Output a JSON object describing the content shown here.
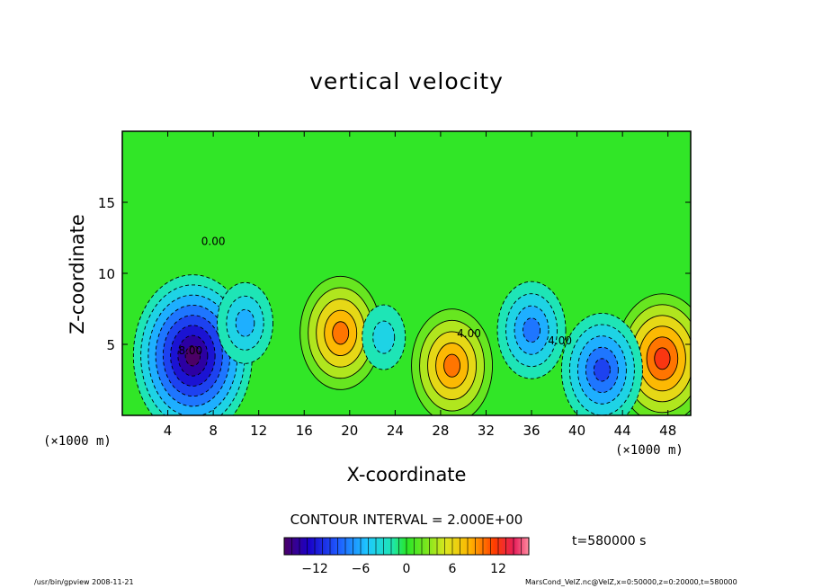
{
  "chart_data": {
    "type": "heatmap",
    "title": "vertical velocity",
    "xlabel": "X-coordinate",
    "ylabel": "Z-coordinate",
    "x_unit_label_left": "(×1000 m)",
    "x_unit_label_right": "(×1000 m)",
    "xlim": [
      0,
      50
    ],
    "ylim": [
      0,
      20
    ],
    "x_ticks": [
      "4",
      "8",
      "12",
      "16",
      "20",
      "24",
      "28",
      "32",
      "36",
      "40",
      "44",
      "48"
    ],
    "x_tick_values": [
      4,
      8,
      12,
      16,
      20,
      24,
      28,
      32,
      36,
      40,
      44,
      48
    ],
    "y_ticks": [
      "5",
      "10",
      "15"
    ],
    "y_tick_values": [
      5,
      10,
      15
    ],
    "contour_interval_label": "CONTOUR INTERVAL = 2.000E+00",
    "contour_labels": [
      "0.00",
      "4.00",
      "4.00",
      "8.00"
    ],
    "colorbar": {
      "min": -16,
      "max": 16,
      "tick_labels": [
        "−12",
        "−6",
        "0",
        "6",
        "12"
      ],
      "tick_values": [
        -12,
        -6,
        0,
        6,
        12
      ]
    },
    "features": [
      {
        "type": "updraft",
        "x": 19.2,
        "z": 5.8,
        "peak": 10
      },
      {
        "type": "updraft",
        "x": 29.0,
        "z": 3.5,
        "peak": 9
      },
      {
        "type": "updraft",
        "x": 47.5,
        "z": 4.0,
        "peak": 11
      },
      {
        "type": "downdraft",
        "x": 6.2,
        "z": 4.2,
        "peak": -16
      },
      {
        "type": "downdraft",
        "x": 10.8,
        "z": 6.5,
        "peak": -6
      },
      {
        "type": "downdraft",
        "x": 23.0,
        "z": 5.5,
        "peak": -4
      },
      {
        "type": "downdraft",
        "x": 36.0,
        "z": 6.0,
        "peak": -7
      },
      {
        "type": "downdraft",
        "x": 42.2,
        "z": 3.2,
        "peak": -9
      }
    ],
    "time_label": "t=580000 s"
  },
  "footer": {
    "left": "/usr/bin/gpview   2008-11-21",
    "right": "MarsCond_VelZ.nc@VelZ,x=0:50000,z=0:20000,t=580000"
  }
}
